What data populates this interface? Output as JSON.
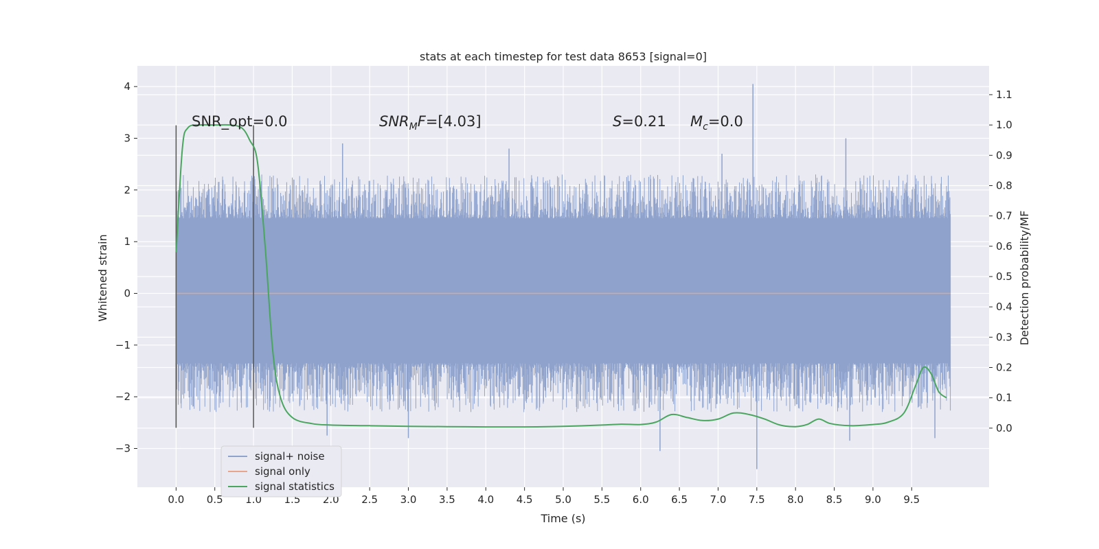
{
  "chart_data": {
    "type": "line",
    "title": "stats at each timestep for test data 8653 [signal=0]",
    "xlabel": "Time (s)",
    "ylabel": "Whitened strain",
    "y2label": "Detection probability/MF",
    "xlim": [
      -0.5,
      10.5
    ],
    "ylim": [
      -3.75,
      4.4
    ],
    "y2lim": [
      -0.195,
      1.195
    ],
    "x_ticks": [
      0.0,
      0.5,
      1.0,
      1.5,
      2.0,
      2.5,
      3.0,
      3.5,
      4.0,
      4.5,
      5.0,
      5.5,
      6.0,
      6.5,
      7.0,
      7.5,
      8.0,
      8.5,
      9.0,
      9.5
    ],
    "x_tick_labels": [
      "0.0",
      "0.5",
      "1.0",
      "1.5",
      "2.0",
      "2.5",
      "3.0",
      "3.5",
      "4.0",
      "4.5",
      "5.0",
      "5.5",
      "6.0",
      "6.5",
      "7.0",
      "7.5",
      "8.0",
      "8.5",
      "9.0",
      "9.5"
    ],
    "y_ticks": [
      -3,
      -2,
      -1,
      0,
      1,
      2,
      3,
      4
    ],
    "y_tick_labels": [
      "−3",
      "−2",
      "−1",
      "0",
      "1",
      "2",
      "3",
      "4"
    ],
    "y2_ticks": [
      0.0,
      0.1,
      0.2,
      0.3,
      0.4,
      0.5,
      0.6,
      0.7,
      0.8,
      0.9,
      1.0,
      1.1
    ],
    "y2_tick_labels": [
      "0.0",
      "0.1",
      "0.2",
      "0.3",
      "0.4",
      "0.5",
      "0.6",
      "0.7",
      "0.8",
      "0.9",
      "1.0",
      "1.1"
    ],
    "grid": true,
    "legend_position": "lower-left",
    "colors": {
      "noise": "#8ea2cc",
      "signal": "#e8a58b",
      "stats": "#4aa55f",
      "vline": "#555555",
      "background": "#eaeaf2",
      "grid": "#ffffff"
    },
    "noise_range": [
      0.0,
      10.0
    ],
    "noise_envelope": {
      "dense_band": [
        -1.35,
        1.45
      ],
      "typical_peak": [
        -2.3,
        2.3
      ],
      "notable_spikes": [
        {
          "x": 0.0,
          "y": -2.6
        },
        {
          "x": 1.0,
          "y": 2.1
        },
        {
          "x": 2.15,
          "y": 2.9
        },
        {
          "x": 1.95,
          "y": -2.75
        },
        {
          "x": 3.0,
          "y": -2.8
        },
        {
          "x": 4.3,
          "y": 2.8
        },
        {
          "x": 6.25,
          "y": -3.05
        },
        {
          "x": 7.05,
          "y": 2.7
        },
        {
          "x": 7.45,
          "y": 4.05
        },
        {
          "x": 7.5,
          "y": -3.4
        },
        {
          "x": 8.65,
          "y": 3.0
        },
        {
          "x": 8.7,
          "y": -2.85
        },
        {
          "x": 9.8,
          "y": -2.8
        }
      ]
    },
    "series": [
      {
        "name": "signal+ noise",
        "axis": "left",
        "x": [],
        "y": []
      },
      {
        "name": "signal only",
        "axis": "left",
        "x": [
          0.0,
          10.0
        ],
        "y": [
          0.0,
          0.0
        ]
      },
      {
        "name": "signal statistics",
        "axis": "right",
        "x": [
          0.0,
          0.08,
          0.15,
          0.3,
          0.5,
          0.7,
          0.85,
          0.95,
          1.05,
          1.15,
          1.25,
          1.35,
          1.5,
          1.75,
          2.0,
          2.5,
          3.0,
          3.5,
          4.0,
          4.5,
          5.0,
          5.5,
          5.75,
          6.0,
          6.2,
          6.4,
          6.6,
          6.8,
          7.0,
          7.2,
          7.4,
          7.6,
          7.8,
          8.0,
          8.15,
          8.3,
          8.45,
          8.7,
          9.0,
          9.2,
          9.4,
          9.55,
          9.65,
          9.75,
          9.85,
          9.95
        ],
        "y": [
          0.58,
          0.92,
          0.99,
          1.0,
          1.0,
          1.0,
          0.99,
          0.95,
          0.88,
          0.6,
          0.25,
          0.1,
          0.035,
          0.015,
          0.01,
          0.008,
          0.006,
          0.005,
          0.004,
          0.004,
          0.006,
          0.01,
          0.013,
          0.012,
          0.02,
          0.045,
          0.035,
          0.025,
          0.03,
          0.05,
          0.045,
          0.03,
          0.01,
          0.005,
          0.012,
          0.03,
          0.015,
          0.008,
          0.012,
          0.02,
          0.05,
          0.14,
          0.2,
          0.18,
          0.12,
          0.1
        ]
      }
    ],
    "vlines": [
      {
        "x": 0.0,
        "y_from": -2.6,
        "y_to": 3.25
      },
      {
        "x": 1.0,
        "y_from": -2.6,
        "y_to": 3.25
      }
    ],
    "annotations": {
      "snr_opt": "SNR_opt=0.0",
      "snr_mf": "=[4.03]",
      "s_val": "=0.21",
      "mc_val": "=0.0"
    }
  }
}
